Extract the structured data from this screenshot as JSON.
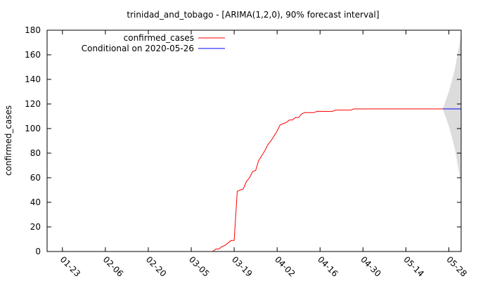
{
  "chart_data": {
    "type": "line",
    "title": "trinidad_and_tobago -  [ARIMA(1,2,0), 90% forecast interval]",
    "xlabel": "",
    "ylabel": "confirmed_cases",
    "x_tick_labels": [
      "01-23",
      "02-06",
      "02-20",
      "03-05",
      "03-19",
      "04-02",
      "04-16",
      "04-30",
      "05-14",
      "05-28"
    ],
    "x_tick_dates": [
      "2020-01-23",
      "2020-02-06",
      "2020-02-20",
      "2020-03-05",
      "2020-03-19",
      "2020-04-02",
      "2020-04-16",
      "2020-04-30",
      "2020-05-14",
      "2020-05-28"
    ],
    "xlim": [
      "2020-01-18",
      "2020-06-01"
    ],
    "ylim": [
      0,
      180
    ],
    "y_ticks": [
      0,
      20,
      40,
      60,
      80,
      100,
      120,
      140,
      160,
      180
    ],
    "grid": false,
    "legend_position": "top-left",
    "series": [
      {
        "name": "confirmed_cases",
        "color": "#ff0000",
        "points": [
          [
            "2020-01-22",
            0
          ],
          [
            "2020-03-12",
            0
          ],
          [
            "2020-03-13",
            2
          ],
          [
            "2020-03-14",
            2
          ],
          [
            "2020-03-15",
            4
          ],
          [
            "2020-03-16",
            5
          ],
          [
            "2020-03-17",
            7
          ],
          [
            "2020-03-18",
            9
          ],
          [
            "2020-03-19",
            9
          ],
          [
            "2020-03-20",
            49
          ],
          [
            "2020-03-21",
            50
          ],
          [
            "2020-03-22",
            51
          ],
          [
            "2020-03-23",
            57
          ],
          [
            "2020-03-24",
            60
          ],
          [
            "2020-03-25",
            65
          ],
          [
            "2020-03-26",
            66
          ],
          [
            "2020-03-27",
            74
          ],
          [
            "2020-03-28",
            78
          ],
          [
            "2020-03-29",
            82
          ],
          [
            "2020-03-30",
            87
          ],
          [
            "2020-03-31",
            90
          ],
          [
            "2020-04-01",
            94
          ],
          [
            "2020-04-02",
            98
          ],
          [
            "2020-04-03",
            103
          ],
          [
            "2020-04-04",
            104
          ],
          [
            "2020-04-05",
            105
          ],
          [
            "2020-04-06",
            107
          ],
          [
            "2020-04-07",
            107
          ],
          [
            "2020-04-08",
            109
          ],
          [
            "2020-04-09",
            109
          ],
          [
            "2020-04-10",
            112
          ],
          [
            "2020-04-11",
            113
          ],
          [
            "2020-04-12",
            113
          ],
          [
            "2020-04-13",
            113
          ],
          [
            "2020-04-14",
            113
          ],
          [
            "2020-04-15",
            114
          ],
          [
            "2020-04-16",
            114
          ],
          [
            "2020-04-20",
            114
          ],
          [
            "2020-04-21",
            115
          ],
          [
            "2020-04-26",
            115
          ],
          [
            "2020-04-27",
            116
          ],
          [
            "2020-05-26",
            116
          ]
        ]
      },
      {
        "name": "Conditional on 2020-05-26",
        "color": "#0000ff",
        "points": [
          [
            "2020-05-26",
            116
          ],
          [
            "2020-06-01",
            116
          ]
        ]
      }
    ],
    "forecast_interval": {
      "level": "90%",
      "color": "#dcdcdc",
      "start": [
        "2020-05-26",
        116
      ],
      "upper": [
        [
          "2020-05-27",
          123
        ],
        [
          "2020-05-28",
          130
        ],
        [
          "2020-05-29",
          139
        ],
        [
          "2020-05-30",
          149
        ],
        [
          "2020-05-31",
          163
        ],
        [
          "2020-06-01",
          177
        ]
      ],
      "lower": [
        [
          "2020-05-27",
          109
        ],
        [
          "2020-05-28",
          102
        ],
        [
          "2020-05-29",
          93
        ],
        [
          "2020-05-30",
          83
        ],
        [
          "2020-05-31",
          69
        ],
        [
          "2020-06-01",
          55
        ]
      ]
    }
  }
}
